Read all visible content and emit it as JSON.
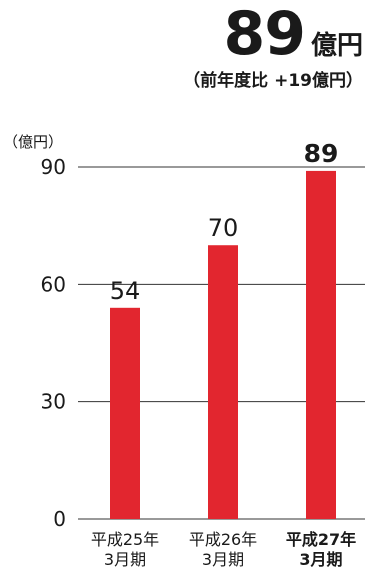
{
  "headline": {
    "value": "89",
    "unit": "億円"
  },
  "subtitle": "（前年度比 +19億円）",
  "colors": {
    "bar": "#e2262f",
    "axis": "#333333",
    "text": "#1a1a1a"
  },
  "chart_data": {
    "type": "bar",
    "unit_label": "（億円）",
    "categories": [
      {
        "line1": "平成25年",
        "line2": "3月期",
        "bold": false
      },
      {
        "line1": "平成26年",
        "line2": "3月期",
        "bold": false
      },
      {
        "line1": "平成27年",
        "line2": "3月期",
        "bold": true
      }
    ],
    "values": [
      54,
      70,
      89
    ],
    "value_labels": [
      "54",
      "70",
      "89"
    ],
    "ylim": [
      0,
      90
    ],
    "yticks": [
      0,
      30,
      60,
      90
    ],
    "grid": true
  }
}
